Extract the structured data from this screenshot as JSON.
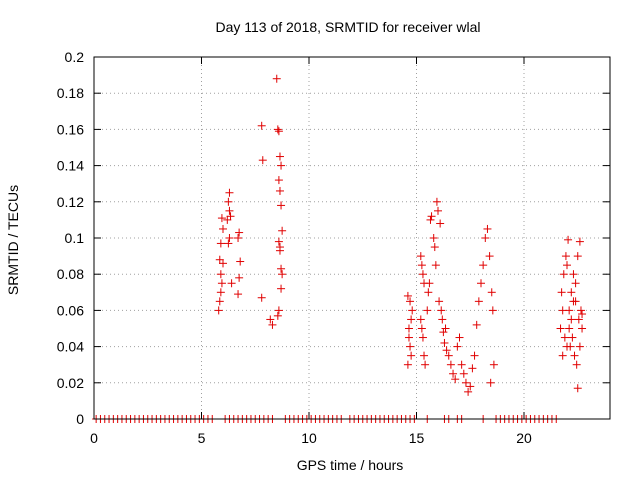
{
  "chart_data": {
    "type": "scatter",
    "title": "Day 113 of 2018, SRMTID for receiver wlal",
    "xlabel": "GPS time / hours",
    "ylabel": "SRMTID / TECUs",
    "xlim": [
      0,
      24
    ],
    "ylim": [
      0,
      0.2
    ],
    "xticks": [
      0,
      5,
      10,
      15,
      20
    ],
    "yticks": [
      0,
      0.02,
      0.04,
      0.06,
      0.08,
      0.1,
      0.12,
      0.14,
      0.16,
      0.18,
      0.2
    ],
    "ytick_labels": [
      "0",
      "0.02",
      "0.04",
      "0.06",
      "0.08",
      "0.1",
      "0.12",
      "0.14",
      "0.16",
      "0.18",
      "0.2"
    ],
    "grid": true,
    "marker": "+",
    "color": "#e00000",
    "series": [
      {
        "x": [
          5.8,
          5.85,
          5.9,
          5.95,
          5.9,
          6.0,
          5.85,
          5.9,
          6.0,
          5.95,
          6.3,
          6.25,
          6.3,
          6.35,
          6.2,
          6.3,
          6.25,
          6.4,
          6.7,
          6.75,
          6.8,
          6.7,
          6.75,
          7.8,
          7.85,
          7.8,
          8.2,
          8.3,
          8.5,
          8.55,
          8.6,
          8.65,
          8.7,
          8.6,
          8.65,
          8.7,
          8.75,
          8.6,
          8.65,
          8.7,
          8.75,
          8.6,
          8.55,
          8.65,
          8.7
        ],
        "y": [
          0.06,
          0.065,
          0.07,
          0.075,
          0.08,
          0.086,
          0.088,
          0.097,
          0.105,
          0.111,
          0.125,
          0.12,
          0.115,
          0.112,
          0.11,
          0.1,
          0.097,
          0.075,
          0.069,
          0.078,
          0.087,
          0.1,
          0.103,
          0.162,
          0.143,
          0.067,
          0.055,
          0.052,
          0.188,
          0.16,
          0.159,
          0.145,
          0.14,
          0.132,
          0.126,
          0.118,
          0.104,
          0.098,
          0.095,
          0.083,
          0.08,
          0.06,
          0.057,
          0.093,
          0.072
        ]
      },
      {
        "x": [
          14.6,
          14.7,
          14.65,
          14.75,
          14.7,
          14.6,
          14.65,
          14.75,
          14.8,
          15.2,
          15.25,
          15.3,
          15.35,
          15.2,
          15.25,
          15.3,
          15.35,
          15.4,
          15.5,
          15.55,
          15.6,
          15.65,
          15.7,
          15.8,
          15.85,
          15.9,
          15.95,
          16.0,
          16.1,
          16.05,
          16.15,
          16.2,
          16.25,
          16.3,
          16.35,
          16.4,
          16.5,
          16.6,
          16.7,
          16.8,
          16.9,
          17.0,
          17.1,
          17.2,
          17.3,
          17.4,
          17.5,
          17.6,
          17.7,
          17.8,
          17.9,
          18.0,
          18.1,
          18.2,
          18.3,
          18.4,
          18.5,
          18.55,
          18.6,
          18.45
        ],
        "y": [
          0.03,
          0.04,
          0.05,
          0.055,
          0.065,
          0.068,
          0.045,
          0.035,
          0.06,
          0.09,
          0.085,
          0.08,
          0.075,
          0.055,
          0.05,
          0.045,
          0.035,
          0.03,
          0.06,
          0.07,
          0.075,
          0.11,
          0.112,
          0.1,
          0.095,
          0.085,
          0.12,
          0.115,
          0.108,
          0.065,
          0.06,
          0.055,
          0.048,
          0.042,
          0.05,
          0.038,
          0.035,
          0.03,
          0.025,
          0.022,
          0.04,
          0.045,
          0.03,
          0.025,
          0.02,
          0.015,
          0.018,
          0.028,
          0.035,
          0.052,
          0.065,
          0.075,
          0.085,
          0.1,
          0.105,
          0.09,
          0.07,
          0.06,
          0.03,
          0.02
        ]
      },
      {
        "x": [
          21.7,
          21.8,
          21.9,
          22.0,
          21.75,
          21.85,
          21.95,
          22.05,
          22.1,
          22.2,
          22.3,
          22.4,
          22.5,
          22.6,
          22.7,
          22.15,
          22.25,
          22.35,
          22.45,
          22.55,
          22.65,
          21.8,
          22.0,
          22.2,
          22.4,
          22.6,
          22.5,
          22.7,
          22.3,
          22.1
        ],
        "y": [
          0.05,
          0.06,
          0.045,
          0.04,
          0.07,
          0.08,
          0.09,
          0.099,
          0.06,
          0.055,
          0.065,
          0.075,
          0.09,
          0.098,
          0.05,
          0.04,
          0.045,
          0.035,
          0.03,
          0.055,
          0.06,
          0.035,
          0.085,
          0.07,
          0.065,
          0.04,
          0.017,
          0.058,
          0.08,
          0.05
        ]
      },
      {
        "x": [
          0.1,
          0.3,
          0.5,
          0.7,
          0.9,
          1.1,
          1.3,
          1.5,
          1.7,
          1.9,
          2.1,
          2.3,
          2.5,
          2.7,
          2.9,
          3.1,
          3.3,
          3.5,
          3.7,
          3.9,
          4.1,
          4.3,
          4.5,
          4.7,
          4.9,
          5.1,
          5.3,
          5.5,
          6.1,
          6.3,
          6.5,
          6.7,
          6.9,
          7.1,
          7.3,
          7.5,
          7.7,
          7.9,
          8.1,
          8.3,
          8.9,
          9.1,
          9.3,
          9.5,
          9.7,
          9.9,
          10.1,
          10.3,
          10.5,
          10.7,
          10.9,
          11.1,
          11.3,
          11.5,
          11.9,
          12.1,
          12.3,
          12.5,
          12.7,
          12.9,
          13.1,
          13.3,
          13.5,
          13.7,
          13.9,
          14.1,
          14.3,
          14.5,
          14.7,
          14.9,
          15.5,
          16.3,
          16.5,
          16.9,
          17.1,
          18.1,
          18.7,
          18.9,
          19.1,
          19.3,
          19.5,
          19.7,
          19.9,
          20.1,
          20.3,
          20.5,
          20.7,
          20.9,
          21.1,
          21.3,
          21.5
        ],
        "y": [
          0,
          0,
          0,
          0,
          0,
          0,
          0,
          0,
          0,
          0,
          0,
          0,
          0,
          0,
          0,
          0,
          0,
          0,
          0,
          0,
          0,
          0,
          0,
          0,
          0,
          0,
          0,
          0,
          0,
          0,
          0,
          0,
          0,
          0,
          0,
          0,
          0,
          0,
          0,
          0,
          0,
          0,
          0,
          0,
          0,
          0,
          0,
          0,
          0,
          0,
          0,
          0,
          0,
          0,
          0,
          0,
          0,
          0,
          0,
          0,
          0,
          0,
          0,
          0,
          0,
          0,
          0,
          0,
          0,
          0,
          0,
          0,
          0,
          0,
          0,
          0,
          0,
          0,
          0,
          0,
          0,
          0,
          0,
          0,
          0,
          0,
          0,
          0,
          0,
          0,
          0
        ]
      }
    ]
  }
}
